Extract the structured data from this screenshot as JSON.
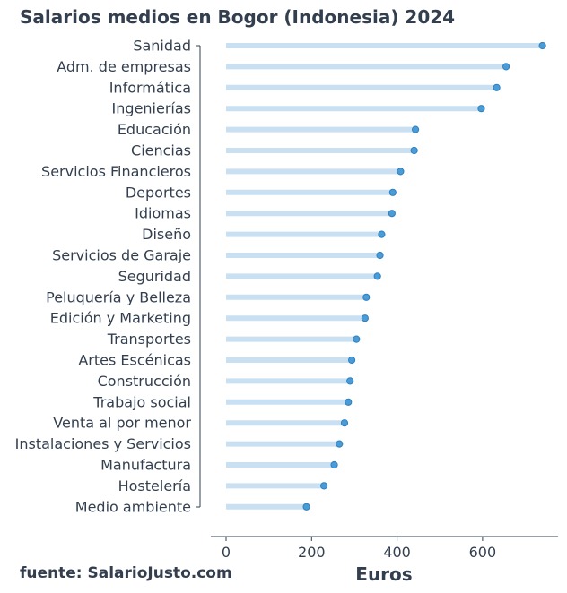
{
  "chart_data": {
    "type": "lollipop",
    "title": "Salarios medios en Bogor (Indonesia) 2024",
    "xlabel": "Euros",
    "source": "fuente: SalarioJusto.com",
    "xlim": [
      -35,
      780
    ],
    "xticks": [
      0,
      200,
      400,
      600
    ],
    "grid": false,
    "categories": [
      "Sanidad",
      "Adm. de empresas",
      "Informática",
      "Ingenierías",
      "Educación",
      "Ciencias",
      "Servicios Financieros",
      "Deportes",
      "Idiomas",
      "Diseño",
      "Servicios de Garaje",
      "Seguridad",
      "Peluquería y Belleza",
      "Edición y Marketing",
      "Transportes",
      "Artes Escénicas",
      "Construcción",
      "Trabajo social",
      "Venta al por menor",
      "Instalaciones y Servicios",
      "Manufactura",
      "Hostelería",
      "Medio ambiente"
    ],
    "values": [
      740,
      655,
      633,
      597,
      443,
      440,
      408,
      390,
      388,
      364,
      360,
      354,
      328,
      325,
      305,
      294,
      290,
      286,
      277,
      265,
      253,
      229,
      188
    ],
    "colors": {
      "stem": "#c9e0f3",
      "dot": "#4a9bd6",
      "text": "#333f4f"
    }
  }
}
